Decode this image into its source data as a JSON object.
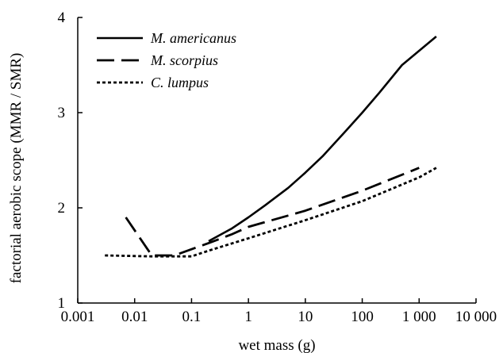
{
  "chart_data": {
    "type": "line",
    "xlabel": "wet mass (g)",
    "ylabel": "factorial aerobic scope (MMR / SMR)",
    "x_scale": "log",
    "xlim": [
      0.001,
      10000
    ],
    "ylim": [
      1,
      4
    ],
    "x_ticks": [
      0.001,
      0.01,
      0.1,
      1,
      10,
      100,
      1000,
      10000
    ],
    "x_tick_labels": [
      "0.001",
      "0.01",
      "0.1",
      "1",
      "10",
      "100",
      "1 000",
      "10 000"
    ],
    "y_ticks": [
      1,
      2,
      3,
      4
    ],
    "y_tick_labels": [
      "1",
      "2",
      "3",
      "4"
    ],
    "grid": false,
    "legend_placement": "top-left",
    "series": [
      {
        "name": "M. americanus",
        "dash": "solid",
        "points": [
          [
            0.2,
            1.65
          ],
          [
            0.5,
            1.78
          ],
          [
            1,
            1.9
          ],
          [
            2,
            2.03
          ],
          [
            5,
            2.21
          ],
          [
            10,
            2.37
          ],
          [
            20,
            2.54
          ],
          [
            50,
            2.8
          ],
          [
            100,
            3.0
          ],
          [
            200,
            3.21
          ],
          [
            500,
            3.5
          ],
          [
            1000,
            3.65
          ],
          [
            2000,
            3.8
          ]
        ]
      },
      {
        "name": "M. scorpius",
        "dash": "dashed",
        "points": [
          [
            0.007,
            1.9
          ],
          [
            0.02,
            1.5
          ],
          [
            0.05,
            1.5
          ],
          [
            0.2,
            1.63
          ],
          [
            0.5,
            1.72
          ],
          [
            1,
            1.8
          ],
          [
            10,
            1.97
          ],
          [
            100,
            2.18
          ],
          [
            1000,
            2.42
          ]
        ]
      },
      {
        "name": "C. lumpus",
        "dash": "dotted",
        "points": [
          [
            0.003,
            1.5
          ],
          [
            0.02,
            1.49
          ],
          [
            0.1,
            1.49
          ],
          [
            0.2,
            1.55
          ],
          [
            1,
            1.68
          ],
          [
            10,
            1.87
          ],
          [
            100,
            2.07
          ],
          [
            1000,
            2.32
          ],
          [
            2000,
            2.42
          ]
        ]
      }
    ]
  }
}
